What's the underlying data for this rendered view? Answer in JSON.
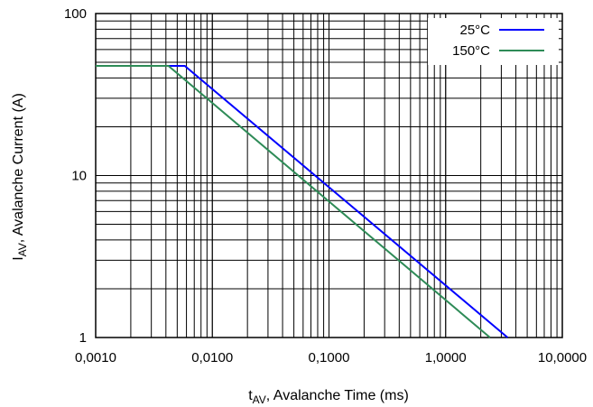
{
  "chart_data": {
    "type": "line",
    "xscale": "log",
    "yscale": "log",
    "xlim": [
      0.001,
      10
    ],
    "ylim": [
      1,
      100
    ],
    "x_ticks": [
      {
        "value": 0.001,
        "label": "0,0010"
      },
      {
        "value": 0.01,
        "label": "0,0100"
      },
      {
        "value": 0.1,
        "label": "0,1000"
      },
      {
        "value": 1,
        "label": "1,0000"
      },
      {
        "value": 10,
        "label": "10,0000"
      }
    ],
    "y_ticks": [
      {
        "value": 1,
        "label": "1"
      },
      {
        "value": 10,
        "label": "10"
      },
      {
        "value": 100,
        "label": "100"
      }
    ],
    "xlabel": {
      "main": "t",
      "sub": "AV",
      "rest": ", Avalanche Time (ms)"
    },
    "ylabel": {
      "main": "I",
      "sub": "AV",
      "rest": ", Avalanche Current (A)"
    },
    "grid": true,
    "legend_position": "top-right",
    "series": [
      {
        "name": "25°C",
        "color": "#0000ff",
        "x": [
          0.001,
          0.0058,
          3.4
        ],
        "y": [
          47.5,
          47.5,
          1.0
        ]
      },
      {
        "name": "150°C",
        "color": "#2e8b57",
        "x": [
          0.001,
          0.0042,
          2.4
        ],
        "y": [
          47.5,
          47.5,
          1.0
        ]
      }
    ]
  }
}
